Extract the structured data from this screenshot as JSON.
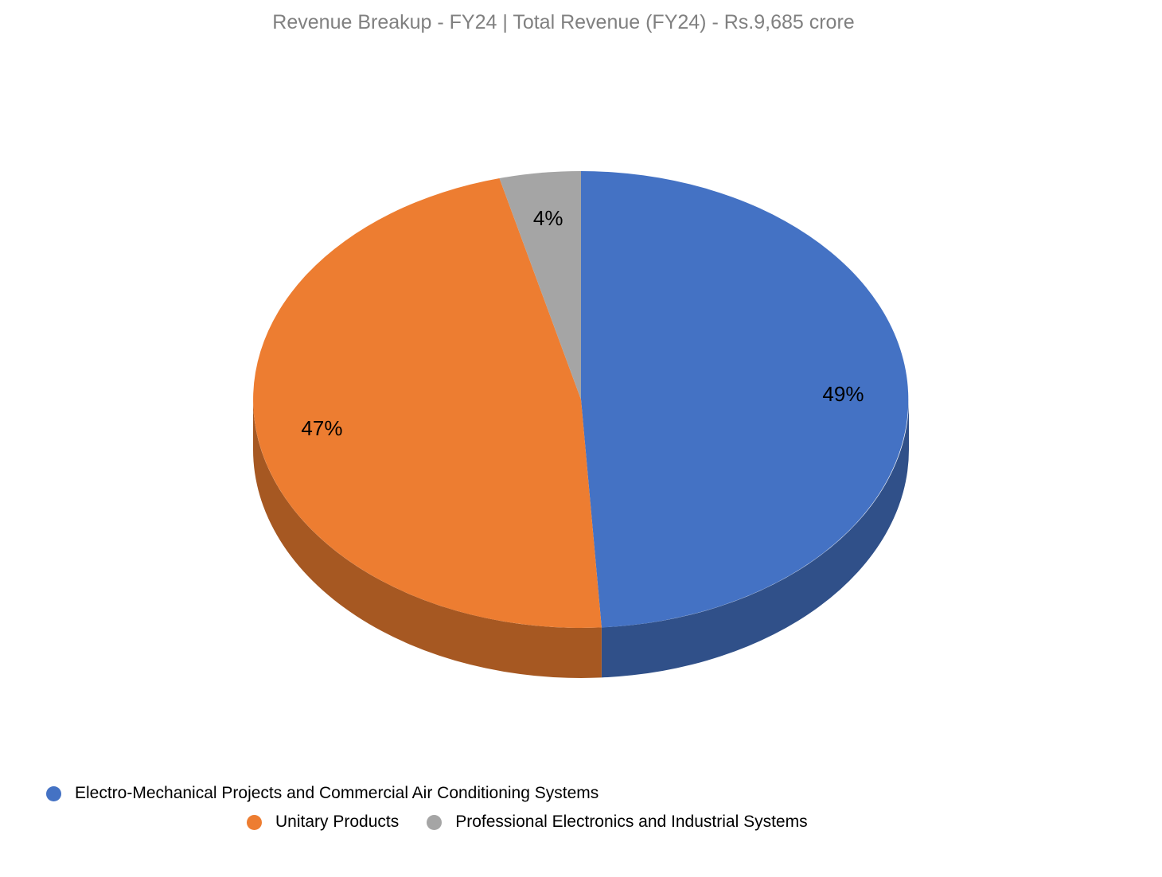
{
  "chart_data": {
    "type": "pie",
    "effect": "3d",
    "title": "Revenue Breakup - FY24 | Total Revenue (FY24) - Rs.9,685 crore",
    "total_revenue_fy24": "Rs.9,685 crore",
    "unit": "percent",
    "start_angle": "12 o'clock, clockwise",
    "legend_position": "bottom",
    "background_color": "#ffffff",
    "title_color": "#808080",
    "data_label_color": "#000000",
    "slices": [
      {
        "label": "Electro-Mechanical Projects and Commercial Air Conditioning Systems",
        "value_pct": 49,
        "data_label": "49%",
        "color": "#4472C4"
      },
      {
        "label": "Unitary Products",
        "value_pct": 47,
        "data_label": "47%",
        "color": "#ED7D31"
      },
      {
        "label": "Professional Electronics and Industrial Systems",
        "value_pct": 4,
        "data_label": "4%",
        "color": "#A5A5A5"
      }
    ]
  }
}
